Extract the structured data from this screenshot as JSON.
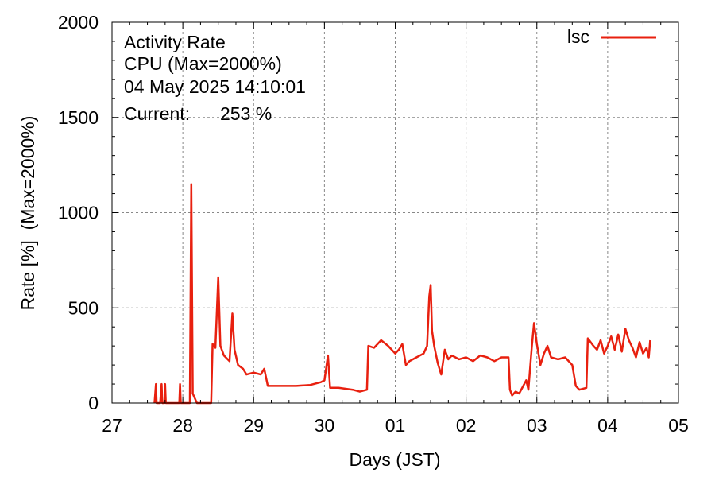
{
  "chart_data": {
    "type": "line",
    "info": {
      "line1": "Activity Rate",
      "line2": "CPU (Max=2000%)",
      "line3": "04 May 2025 14:10:01",
      "current_label": "Current:",
      "current_value": "253 %"
    },
    "xlabel": "Days (JST)",
    "ylabel": "Rate [%]  (Max=2000%)",
    "x_ticks": [
      "27",
      "28",
      "29",
      "30",
      "01",
      "02",
      "03",
      "04",
      "05"
    ],
    "y_ticks": [
      0,
      500,
      1000,
      1500,
      2000
    ],
    "xlim": [
      0,
      8
    ],
    "ylim": [
      0,
      2000
    ],
    "grid": true,
    "legend_position": "top-right",
    "series_color": "#e8200f",
    "series": [
      {
        "name": "lsc",
        "points": [
          [
            0.6,
            0
          ],
          [
            0.62,
            100
          ],
          [
            0.63,
            0
          ],
          [
            0.68,
            0
          ],
          [
            0.7,
            100
          ],
          [
            0.71,
            0
          ],
          [
            0.74,
            0
          ],
          [
            0.75,
            100
          ],
          [
            0.76,
            0
          ],
          [
            0.95,
            0
          ],
          [
            0.96,
            100
          ],
          [
            0.97,
            0
          ],
          [
            1.1,
            0
          ],
          [
            1.12,
            1150
          ],
          [
            1.14,
            50
          ],
          [
            1.2,
            0
          ],
          [
            1.4,
            0
          ],
          [
            1.42,
            310
          ],
          [
            1.46,
            290
          ],
          [
            1.5,
            660
          ],
          [
            1.53,
            300
          ],
          [
            1.58,
            250
          ],
          [
            1.66,
            220
          ],
          [
            1.7,
            470
          ],
          [
            1.73,
            280
          ],
          [
            1.78,
            200
          ],
          [
            1.85,
            180
          ],
          [
            1.9,
            150
          ],
          [
            2.0,
            160
          ],
          [
            2.1,
            150
          ],
          [
            2.15,
            180
          ],
          [
            2.2,
            90
          ],
          [
            2.4,
            90
          ],
          [
            2.6,
            90
          ],
          [
            2.8,
            95
          ],
          [
            2.95,
            110
          ],
          [
            3.0,
            120
          ],
          [
            3.05,
            250
          ],
          [
            3.08,
            80
          ],
          [
            3.2,
            80
          ],
          [
            3.4,
            70
          ],
          [
            3.5,
            60
          ],
          [
            3.6,
            70
          ],
          [
            3.62,
            300
          ],
          [
            3.7,
            290
          ],
          [
            3.8,
            330
          ],
          [
            3.9,
            300
          ],
          [
            4.0,
            260
          ],
          [
            4.05,
            280
          ],
          [
            4.1,
            310
          ],
          [
            4.15,
            200
          ],
          [
            4.2,
            220
          ],
          [
            4.3,
            240
          ],
          [
            4.4,
            260
          ],
          [
            4.45,
            300
          ],
          [
            4.48,
            560
          ],
          [
            4.5,
            620
          ],
          [
            4.52,
            380
          ],
          [
            4.55,
            300
          ],
          [
            4.6,
            210
          ],
          [
            4.65,
            150
          ],
          [
            4.7,
            280
          ],
          [
            4.75,
            230
          ],
          [
            4.8,
            250
          ],
          [
            4.9,
            230
          ],
          [
            5.0,
            240
          ],
          [
            5.1,
            220
          ],
          [
            5.2,
            250
          ],
          [
            5.3,
            240
          ],
          [
            5.4,
            220
          ],
          [
            5.5,
            240
          ],
          [
            5.6,
            240
          ],
          [
            5.62,
            70
          ],
          [
            5.65,
            40
          ],
          [
            5.7,
            60
          ],
          [
            5.75,
            50
          ],
          [
            5.85,
            120
          ],
          [
            5.88,
            70
          ],
          [
            5.93,
            300
          ],
          [
            5.96,
            420
          ],
          [
            6.0,
            310
          ],
          [
            6.05,
            200
          ],
          [
            6.1,
            260
          ],
          [
            6.15,
            300
          ],
          [
            6.2,
            240
          ],
          [
            6.3,
            230
          ],
          [
            6.4,
            240
          ],
          [
            6.5,
            200
          ],
          [
            6.55,
            90
          ],
          [
            6.6,
            70
          ],
          [
            6.7,
            80
          ],
          [
            6.72,
            340
          ],
          [
            6.8,
            300
          ],
          [
            6.85,
            280
          ],
          [
            6.9,
            330
          ],
          [
            6.95,
            260
          ],
          [
            7.0,
            300
          ],
          [
            7.05,
            350
          ],
          [
            7.1,
            280
          ],
          [
            7.15,
            360
          ],
          [
            7.2,
            270
          ],
          [
            7.25,
            390
          ],
          [
            7.3,
            330
          ],
          [
            7.35,
            290
          ],
          [
            7.4,
            240
          ],
          [
            7.45,
            320
          ],
          [
            7.5,
            260
          ],
          [
            7.55,
            290
          ],
          [
            7.58,
            240
          ],
          [
            7.6,
            330
          ]
        ]
      }
    ]
  }
}
